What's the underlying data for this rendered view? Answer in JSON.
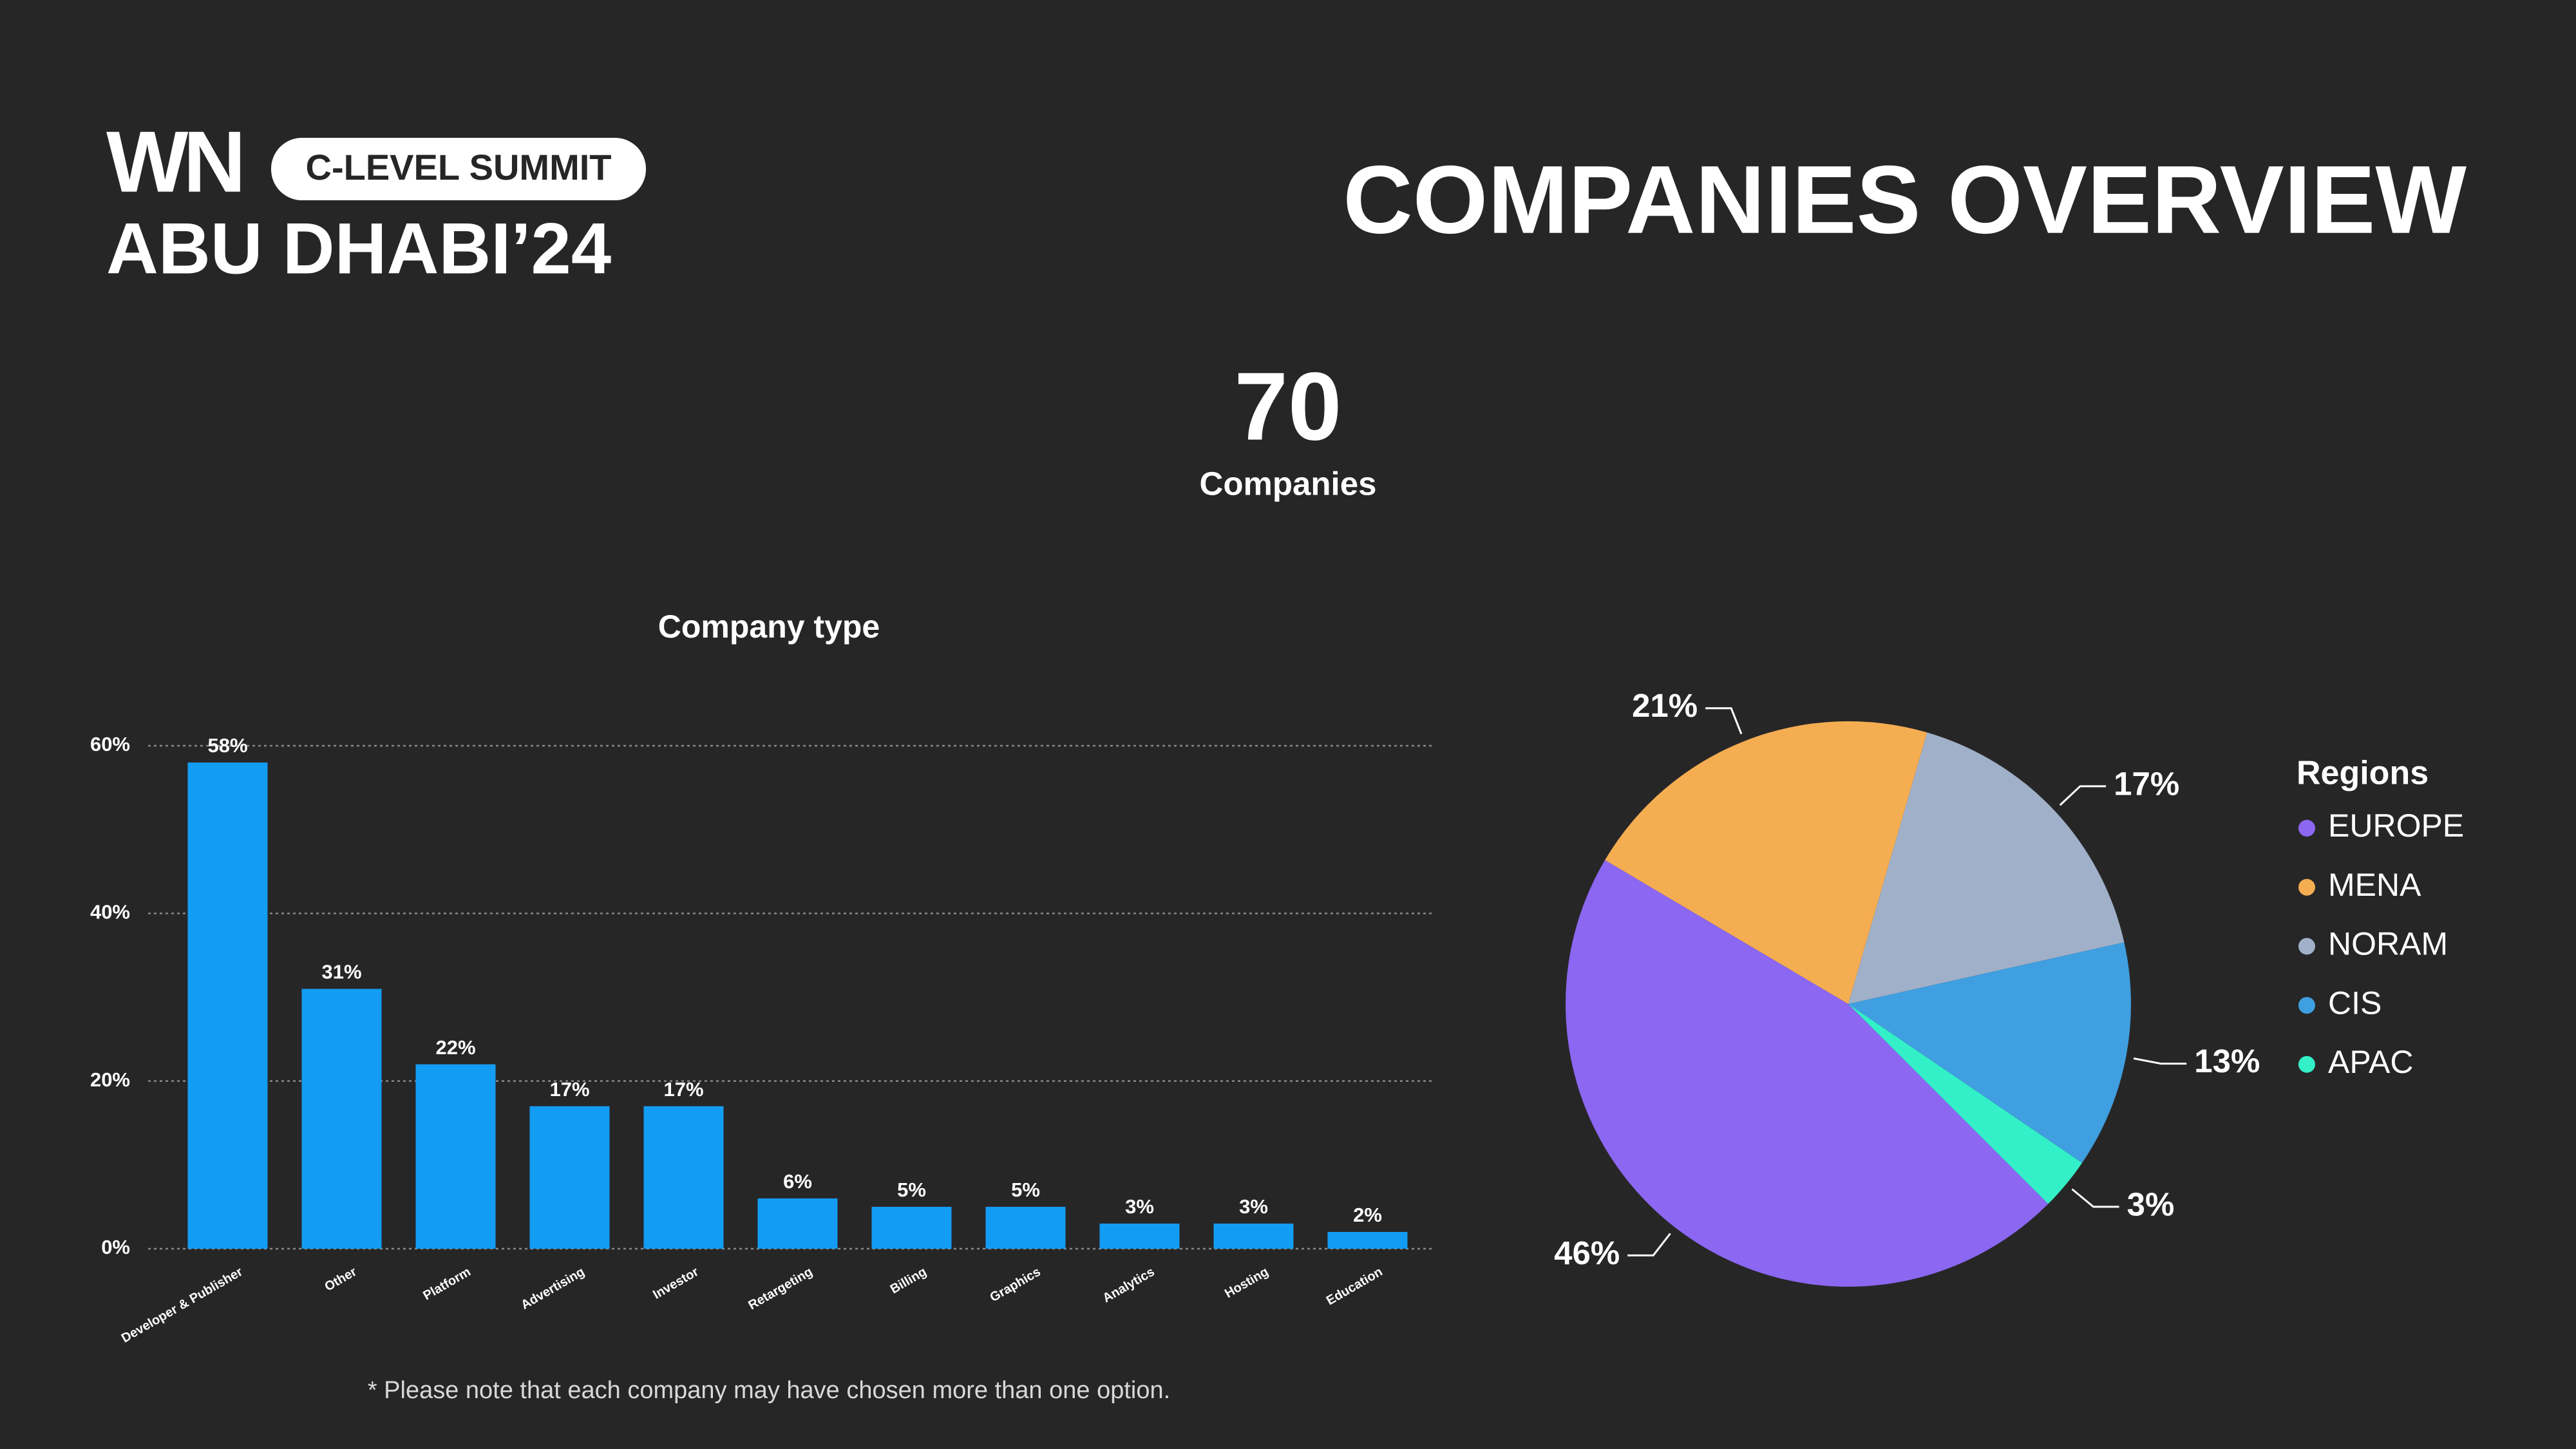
{
  "header": {
    "logo": "WN",
    "badge": "C-LEVEL SUMMIT",
    "event": "ABU DHABI’24",
    "title": "COMPANIES OVERVIEW"
  },
  "summary": {
    "value": "70",
    "label": "Companies"
  },
  "footnote": "* Please note that each company may have chosen more than one option.",
  "chart_data": [
    {
      "type": "bar",
      "title": "Company type",
      "categories": [
        "Developer & Publisher",
        "Other",
        "Platform",
        "Advertising",
        "Investor",
        "Retargeting",
        "Billing",
        "Graphics",
        "Analytics",
        "Hosting",
        "Education"
      ],
      "values": [
        58,
        31,
        22,
        17,
        17,
        6,
        5,
        5,
        3,
        3,
        2
      ],
      "value_labels": [
        "58%",
        "31%",
        "22%",
        "17%",
        "17%",
        "6%",
        "5%",
        "5%",
        "3%",
        "3%",
        "2%"
      ],
      "color": "#139cf3",
      "ylim": [
        0,
        60
      ],
      "yticks": [
        {
          "value": 0,
          "label": "0%"
        },
        {
          "value": 20,
          "label": "20%"
        },
        {
          "value": 40,
          "label": "40%"
        },
        {
          "value": 60,
          "label": "60%"
        }
      ],
      "grid": true
    },
    {
      "type": "pie",
      "legend_title": "Regions",
      "categories": [
        "EUROPE",
        "MENA",
        "NORAM",
        "CIS",
        "APAC"
      ],
      "values": [
        46,
        21,
        17,
        13,
        3
      ],
      "value_labels": [
        "46%",
        "21%",
        "17%",
        "13%",
        "3%"
      ],
      "colors": [
        "#8b67f2",
        "#f5ad52",
        "#a0b0c8",
        "#3f9fe0",
        "#33f0c8"
      ],
      "legend": "right"
    }
  ]
}
